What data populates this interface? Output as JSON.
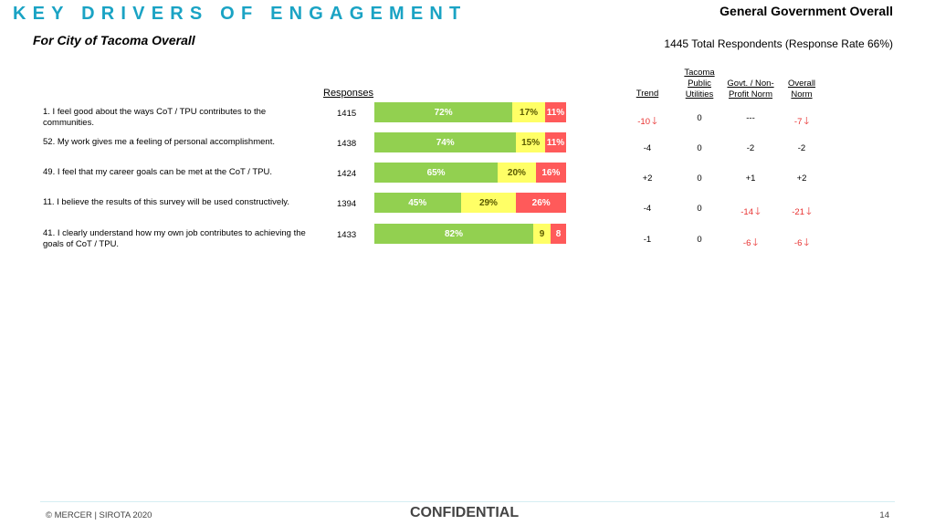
{
  "header": {
    "title": "KEY DRIVERS OF ENGAGEMENT",
    "subtitle": "For City of Tacoma Overall",
    "right_title": "General Government Overall",
    "total_respondents": "1445 Total Respondents (Response Rate  66%)"
  },
  "columns": {
    "responses": "Responses",
    "trend": "Trend",
    "tacoma": "Tacoma Public Utilities",
    "govt": "Govt. / Non-Profit Norm",
    "overall": "Overall Norm"
  },
  "colors": {
    "favorable": "#92d050",
    "neutral": "#ffff66",
    "unfavorable": "#ff5a5a",
    "accent": "#1aa3c4",
    "negative": "#e8302f"
  },
  "rows": [
    {
      "question": "1. I feel good about the ways CoT / TPU contributes to the communities.",
      "responses": "1415",
      "fav": 72,
      "neu": 17,
      "unf": 11,
      "fav_label": "72%",
      "neu_label": "17%",
      "unf_label": "11%",
      "trend": "-10",
      "trend_arrow": "down-arrow-icon",
      "tacoma": "0",
      "govt": "---",
      "overall": "-7",
      "overall_arrow": "down-arrow-icon"
    },
    {
      "question": "52. My work gives me a feeling of personal accomplishment.",
      "responses": "1438",
      "fav": 74,
      "neu": 15,
      "unf": 11,
      "fav_label": "74%",
      "neu_label": "15%",
      "unf_label": "11%",
      "trend": "-4",
      "tacoma": "0",
      "govt": "-2",
      "overall": "-2"
    },
    {
      "question": "49. I feel that my career goals can be met at the CoT / TPU.",
      "responses": "1424",
      "fav": 65,
      "neu": 20,
      "unf": 16,
      "fav_label": "65%",
      "neu_label": "20%",
      "unf_label": "16%",
      "trend": "+2",
      "tacoma": "0",
      "govt": "+1",
      "overall": "+2"
    },
    {
      "question": "11. I believe the results of this survey will be used constructively.",
      "responses": "1394",
      "fav": 45,
      "neu": 29,
      "unf": 26,
      "fav_label": "45%",
      "neu_label": "29%",
      "unf_label": "26%",
      "trend": "-4",
      "tacoma": "0",
      "govt": "-14",
      "govt_arrow": "down-arrow-icon",
      "overall": "-21",
      "overall_arrow": "down-arrow-icon"
    },
    {
      "question": "41. I clearly understand how my own job contributes to achieving the goals of CoT / TPU.",
      "responses": "1433",
      "fav": 82,
      "neu": 9,
      "unf": 8,
      "fav_label": "82%",
      "neu_label": "9",
      "unf_label": "8",
      "trend": "-1",
      "tacoma": "0",
      "govt": "-6",
      "govt_arrow": "down-arrow-icon",
      "overall": "-6",
      "overall_arrow": "down-arrow-icon"
    }
  ],
  "footer": {
    "copyright": "© MERCER | SIROTA 2020",
    "confidential": "CONFIDENTIAL",
    "page_number": "14"
  }
}
